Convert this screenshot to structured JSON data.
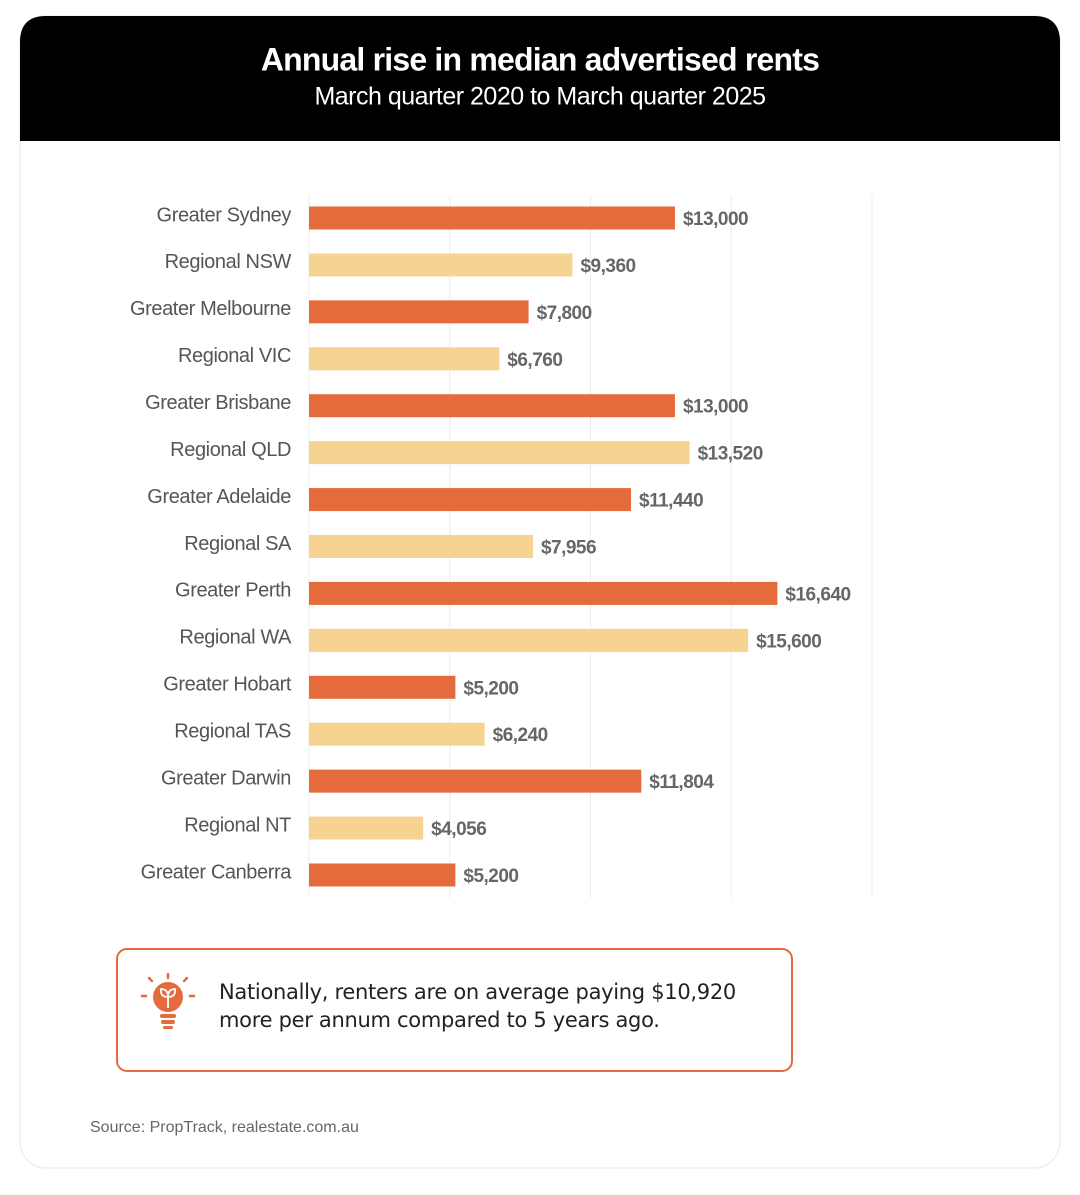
{
  "chart_data": {
    "type": "bar",
    "orientation": "horizontal",
    "title": "Annual rise in median advertised rents",
    "subtitle": "March quarter 2020 to March quarter 2025",
    "categories": [
      "Greater Sydney",
      "Regional NSW",
      "Greater Melbourne",
      "Regional VIC",
      "Greater Brisbane",
      "Regional QLD",
      "Greater Adelaide",
      "Regional SA",
      "Greater Perth",
      "Regional WA",
      "Greater Hobart",
      "Regional TAS",
      "Greater Darwin",
      "Regional NT",
      "Greater Canberra"
    ],
    "values": [
      13000,
      9360,
      7800,
      6760,
      13000,
      13520,
      11440,
      7956,
      16640,
      15600,
      5200,
      6240,
      11804,
      4056,
      5200
    ],
    "value_labels": [
      "$13,000",
      "$9,360",
      "$7,800",
      "$6,760",
      "$13,000",
      "$13,520",
      "$11,440",
      "$7,956",
      "$16,640",
      "$15,600",
      "$5,200",
      "$6,240",
      "$11,804",
      "$4,056",
      "$5,200"
    ],
    "colors": [
      "#e56b3c",
      "#f6d391",
      "#e56b3c",
      "#f6d391",
      "#e56b3c",
      "#f6d391",
      "#e56b3c",
      "#f6d391",
      "#e56b3c",
      "#f6d391",
      "#e56b3c",
      "#f6d391",
      "#e56b3c",
      "#f6d391",
      "#e56b3c"
    ],
    "xlim": [
      0,
      20000
    ],
    "xticks": [
      0,
      5000,
      10000,
      15000,
      20000
    ],
    "grid": true,
    "annotation": "Nationally, renters are on average paying $10,920 more per annum compared to 5 years ago.",
    "source": "Source: PropTrack, realestate.com.au"
  }
}
